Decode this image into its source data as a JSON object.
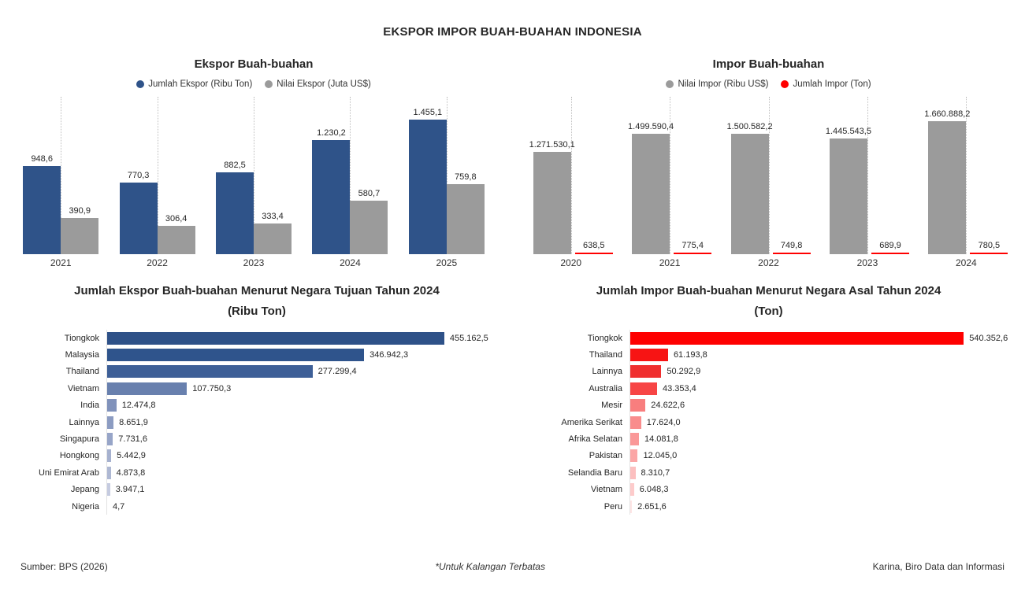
{
  "page_title": "EKSPOR IMPOR BUAH-BUAHAN INDONESIA",
  "footer": {
    "source": "Sumber: BPS (2026)",
    "note": "*Untuk Kalangan Terbatas",
    "credit": "Karina, Biro Data dan Informasi"
  },
  "colors": {
    "export_qty_blue": "#2F5389",
    "value_gray": "#9B9B9B",
    "import_qty_red": "#FF0000",
    "gridline": "#BFBFBF"
  },
  "chart_data": [
    {
      "id": "export-yearly",
      "type": "bar",
      "title": "Ekspor Buah-buahan",
      "categories": [
        "2021",
        "2022",
        "2023",
        "2024",
        "2025"
      ],
      "series": [
        {
          "name": "Jumlah Ekspor (Ribu Ton)",
          "color": "#2F5389",
          "values": [
            948.6,
            770.3,
            882.5,
            1230.2,
            1455.1
          ],
          "labels": [
            "948,6",
            "770,3",
            "882,5",
            "1.230,2",
            "1.455,1"
          ]
        },
        {
          "name": "Nilai Ekspor (Juta US$)",
          "color": "#9B9B9B",
          "values": [
            390.9,
            306.4,
            333.4,
            580.7,
            759.8
          ],
          "labels": [
            "390,9",
            "306,4",
            "333,4",
            "580,7",
            "759,8"
          ]
        }
      ],
      "ylim": [
        0,
        1700
      ],
      "grid": "vertical-dotted",
      "legend_position": "top"
    },
    {
      "id": "import-yearly",
      "type": "bar",
      "title": "Impor Buah-buahan",
      "categories": [
        "2020",
        "2021",
        "2022",
        "2023",
        "2024"
      ],
      "series": [
        {
          "name": "Nilai Impor (Ribu US$)",
          "color": "#9B9B9B",
          "values": [
            1271530.1,
            1499590.4,
            1500582.2,
            1445543.5,
            1660888.2
          ],
          "labels": [
            "1.271.530,1",
            "1.499.590,4",
            "1.500.582,2",
            "1.445.543,5",
            "1.660.888,2"
          ]
        },
        {
          "name": "Jumlah Impor (Ton)",
          "color": "#FF0000",
          "values": [
            638.5,
            775.4,
            749.8,
            689.9,
            780.5
          ],
          "labels": [
            "638,5",
            "775,4",
            "749,8",
            "689,9",
            "780,5"
          ]
        }
      ],
      "ylim": [
        0,
        1960000
      ],
      "grid": "vertical-dotted",
      "legend_position": "top"
    },
    {
      "id": "export-by-country-2024",
      "type": "hbar",
      "title": "Jumlah Ekspor Buah-buahan Menurut Negara Tujuan Tahun 2024",
      "subtitle": "(Ribu Ton)",
      "xlim": [
        0,
        500000
      ],
      "rows": [
        {
          "label": "Tiongkok",
          "value": 455162.5,
          "display": "455.162,5",
          "color": "#2E5188"
        },
        {
          "label": "Malaysia",
          "value": 346942.3,
          "display": "346.942,3",
          "color": "#2F548C"
        },
        {
          "label": "Thailand",
          "value": 277299.4,
          "display": "277.299,4",
          "color": "#3D5F97"
        },
        {
          "label": "Vietnam",
          "value": 107750.3,
          "display": "107.750,3",
          "color": "#6880AE"
        },
        {
          "label": "India",
          "value": 12474.8,
          "display": "12.474,8",
          "color": "#8092BB"
        },
        {
          "label": "Lainnya",
          "value": 8651.9,
          "display": "8.651,9",
          "color": "#8C9CC2"
        },
        {
          "label": "Singapura",
          "value": 7731.6,
          "display": "7.731,6",
          "color": "#97A5C8"
        },
        {
          "label": "Hongkong",
          "value": 5442.9,
          "display": "5.442,9",
          "color": "#A6B1CF"
        },
        {
          "label": "Uni Emirat Arab",
          "value": 4873.8,
          "display": "4.873,8",
          "color": "#AEB8D3"
        },
        {
          "label": "Jepang",
          "value": 3947.1,
          "display": "3.947,1",
          "color": "#C5CBE0"
        },
        {
          "label": "Nigeria",
          "value": 4.7,
          "display": "4,7",
          "color": "#E8EAF3"
        }
      ]
    },
    {
      "id": "import-by-country-2024",
      "type": "hbar",
      "title": "Jumlah Impor Buah-buahan Menurut Negara Asal Tahun 2024",
      "subtitle": "(Ton)",
      "xlim": [
        0,
        600000
      ],
      "rows": [
        {
          "label": "Tiongkok",
          "value": 540352.6,
          "display": "540.352,6",
          "color": "#FE0000"
        },
        {
          "label": "Thailand",
          "value": 61193.8,
          "display": "61.193,8",
          "color": "#F71414"
        },
        {
          "label": "Lainnya",
          "value": 50292.9,
          "display": "50.292,9",
          "color": "#F02F2F"
        },
        {
          "label": "Australia",
          "value": 43353.4,
          "display": "43.353,4",
          "color": "#F74545"
        },
        {
          "label": "Mesir",
          "value": 24622.6,
          "display": "24.622,6",
          "color": "#F87E7E"
        },
        {
          "label": "Amerika Serikat",
          "value": 17624.0,
          "display": "17.624,0",
          "color": "#F98C8C"
        },
        {
          "label": "Afrika Selatan",
          "value": 14081.8,
          "display": "14.081,8",
          "color": "#FA9898"
        },
        {
          "label": "Pakistan",
          "value": 12045.0,
          "display": "12.045,0",
          "color": "#FBA6A6"
        },
        {
          "label": "Selandia Baru",
          "value": 8310.7,
          "display": "8.310,7",
          "color": "#FCBFBF"
        },
        {
          "label": "Vietnam",
          "value": 6048.3,
          "display": "6.048,3",
          "color": "#FDCBCB"
        },
        {
          "label": "Peru",
          "value": 2651.6,
          "display": "2.651,6",
          "color": "#FEE5E5"
        }
      ]
    }
  ]
}
